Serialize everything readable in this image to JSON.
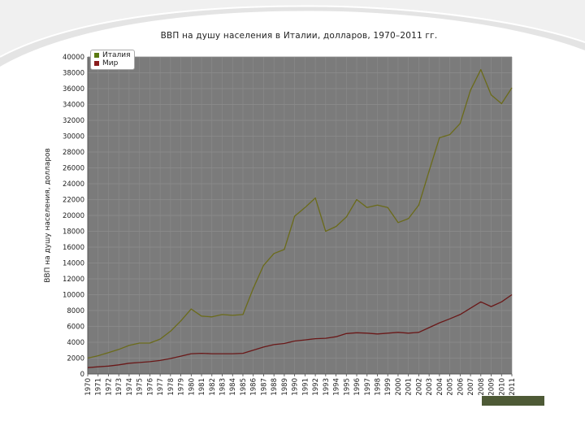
{
  "chart_data": {
    "type": "line",
    "title": "ВВП на душу населения в Италии, долларов, 1970–2011 гг.",
    "ylabel": "ВВП на душу населения, долларов",
    "xlabel": "",
    "ylim": [
      0,
      40000
    ],
    "yticks": [
      0,
      2000,
      4000,
      6000,
      8000,
      10000,
      12000,
      14000,
      16000,
      18000,
      20000,
      22000,
      24000,
      26000,
      28000,
      30000,
      32000,
      34000,
      36000,
      38000,
      40000
    ],
    "grid": true,
    "legend_position": "top-left",
    "plot_background": "#7b7b7b",
    "categories": [
      "1970",
      "1971",
      "1972",
      "1973",
      "1974",
      "1975",
      "1976",
      "1977",
      "1978",
      "1979",
      "1980",
      "1981",
      "1982",
      "1983",
      "1984",
      "1985",
      "1986",
      "1987",
      "1988",
      "1989",
      "1990",
      "1991",
      "1992",
      "1993",
      "1994",
      "1995",
      "1996",
      "1997",
      "1998",
      "1999",
      "2000",
      "2001",
      "2002",
      "2003",
      "2004",
      "2005",
      "2006",
      "2007",
      "2008",
      "2009",
      "2010",
      "2011"
    ],
    "series": [
      {
        "name": "Италия",
        "color": "#6b6b1a",
        "values": [
          2000,
          2300,
          2700,
          3100,
          3600,
          3900,
          3900,
          4400,
          5400,
          6700,
          8200,
          7300,
          7200,
          7500,
          7400,
          7500,
          10800,
          13700,
          15200,
          15700,
          19900,
          21000,
          22200,
          18000,
          18600,
          19800,
          22000,
          21000,
          21300,
          21000,
          19100,
          19600,
          21300,
          25600,
          29800,
          30200,
          31600,
          35800,
          38400,
          35200,
          34100,
          36100
        ]
      },
      {
        "name": "Мир",
        "color": "#6a1818",
        "values": [
          800,
          900,
          1000,
          1150,
          1350,
          1450,
          1550,
          1700,
          1950,
          2250,
          2550,
          2600,
          2550,
          2550,
          2550,
          2600,
          3000,
          3400,
          3700,
          3850,
          4150,
          4300,
          4450,
          4500,
          4700,
          5100,
          5200,
          5150,
          5050,
          5150,
          5250,
          5150,
          5250,
          5850,
          6450,
          6950,
          7500,
          8300,
          9100,
          8500,
          9100,
          10000
        ]
      }
    ]
  }
}
